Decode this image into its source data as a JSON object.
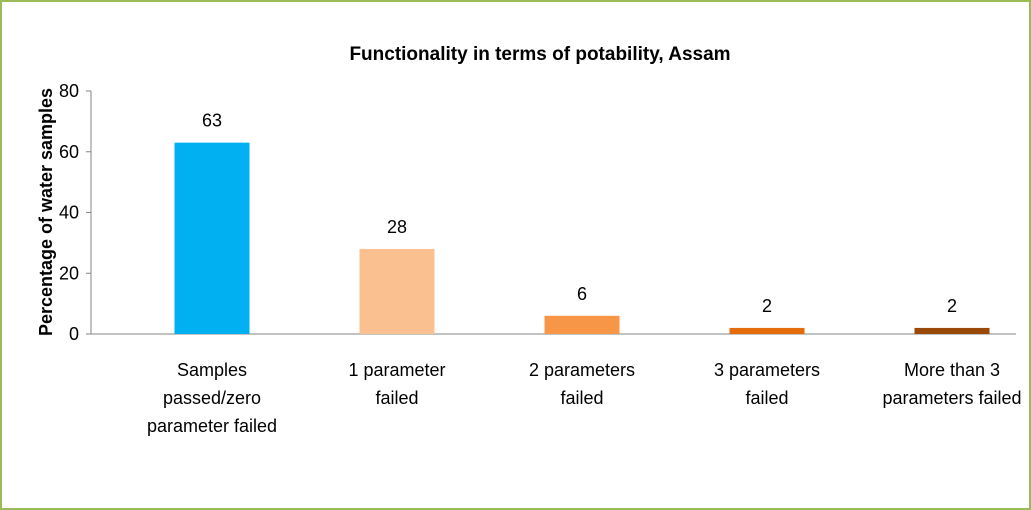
{
  "chart_data": {
    "type": "bar",
    "title": "Functionality in terms of potability, Assam",
    "ylabel": "Percentage of water samples",
    "categories": [
      "Samples passed/zero parameter failed",
      "1 parameter failed",
      "2 parameters failed",
      "3 parameters failed",
      "More than 3 parameters failed"
    ],
    "values": [
      63,
      28,
      6,
      2,
      2
    ],
    "colors": [
      "#00b0f0",
      "#fac090",
      "#f79646",
      "#e46c0a",
      "#984807"
    ],
    "ylim": [
      0,
      80
    ],
    "yticks": [
      0,
      20,
      40,
      60,
      80
    ],
    "grid": false
  }
}
